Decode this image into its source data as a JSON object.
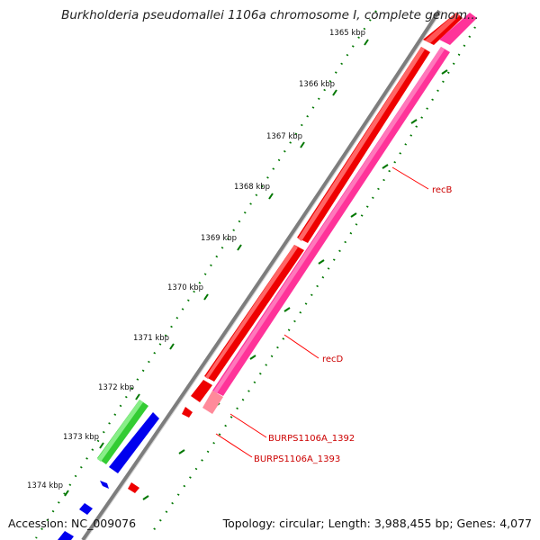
{
  "title": "Burkholderia pseudomallei 1106a chromosome I, complete genom...",
  "footer": {
    "accession": "Accession: NC_009076",
    "topology": "Topology: circular; Length: 3,988,455 bp; Genes: 4,077"
  },
  "ruler_labels": [
    "1365 kbp",
    "1366 kbp",
    "1367 kbp",
    "1368 kbp",
    "1369 kbp",
    "1370 kbp",
    "1371 kbp",
    "1372 kbp",
    "1373 kbp",
    "1374 kbp"
  ],
  "gene_labels": {
    "recB": "recB",
    "recD": "recD",
    "burps1392": "BURPS1106A_1392",
    "burps1393": "BURPS1106A_1393"
  },
  "colors": {
    "backbone": "#808080",
    "red_track": "#ff0000",
    "pink_track": "#ff3399",
    "green_track": "#33cc33",
    "blue_track": "#0000ee",
    "ruler_ticks": "#007700",
    "label_line": "#ff0000"
  }
}
